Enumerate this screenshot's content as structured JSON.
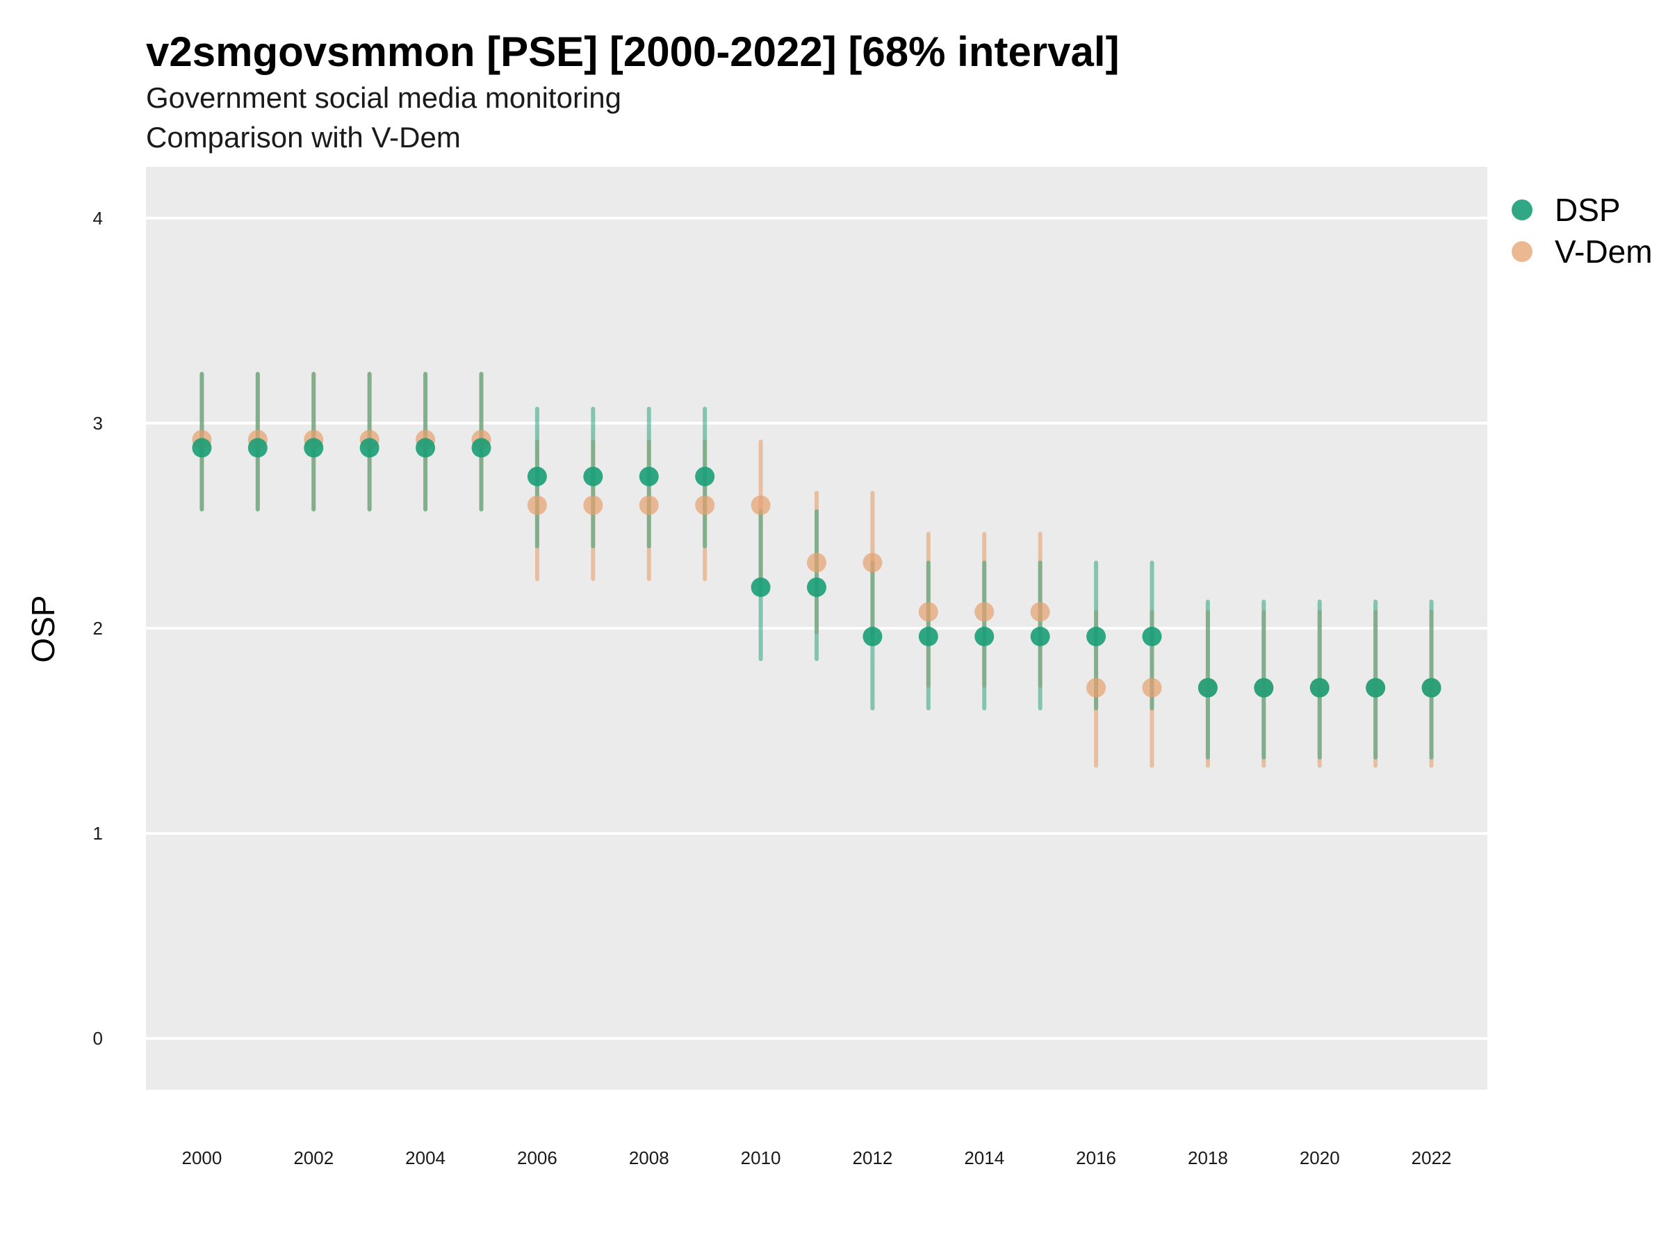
{
  "chart_data": {
    "type": "scatter",
    "title": "v2smgovsmmon [PSE] [2000-2022] [68% interval]",
    "subtitle_line1": "Government social media monitoring",
    "subtitle_line2": "Comparison with V-Dem",
    "xlabel": "",
    "ylabel": "OSP",
    "xlim": [
      1999.0,
      2023.0
    ],
    "ylim": [
      -0.25,
      4.25
    ],
    "x_ticks": [
      2000,
      2002,
      2004,
      2006,
      2008,
      2010,
      2012,
      2014,
      2016,
      2018,
      2020,
      2022
    ],
    "x_tick_labels": [
      "2000",
      "2002",
      "2004",
      "2006",
      "2008",
      "2010",
      "2012",
      "2014",
      "2016",
      "2018",
      "2020",
      "2022"
    ],
    "y_ticks": [
      0,
      1,
      2,
      3,
      4
    ],
    "y_tick_labels": [
      "0",
      "1",
      "2",
      "3",
      "4"
    ],
    "grid": true,
    "legend_position": "top-right",
    "x": [
      2000,
      2001,
      2002,
      2003,
      2004,
      2005,
      2006,
      2007,
      2008,
      2009,
      2010,
      2011,
      2012,
      2013,
      2014,
      2015,
      2016,
      2017,
      2018,
      2019,
      2020,
      2021,
      2022
    ],
    "series": [
      {
        "name": "V-Dem",
        "color": "#E6A06E",
        "values": [
          2.92,
          2.92,
          2.92,
          2.92,
          2.92,
          2.92,
          2.6,
          2.6,
          2.6,
          2.6,
          2.6,
          2.32,
          2.32,
          2.08,
          2.08,
          2.08,
          1.71,
          1.71,
          1.71,
          1.71,
          1.71,
          1.71,
          1.71
        ],
        "lower": [
          2.58,
          2.58,
          2.58,
          2.58,
          2.58,
          2.58,
          2.24,
          2.24,
          2.24,
          2.24,
          2.24,
          1.98,
          1.98,
          1.72,
          1.72,
          1.72,
          1.33,
          1.33,
          1.33,
          1.33,
          1.33,
          1.33,
          1.33
        ],
        "upper": [
          3.24,
          3.24,
          3.24,
          3.24,
          3.24,
          3.24,
          2.91,
          2.91,
          2.91,
          2.91,
          2.91,
          2.66,
          2.66,
          2.46,
          2.46,
          2.46,
          2.08,
          2.08,
          2.08,
          2.08,
          2.08,
          2.08,
          2.08
        ]
      },
      {
        "name": "DSP",
        "color": "#1B9E77",
        "values": [
          2.88,
          2.88,
          2.88,
          2.88,
          2.88,
          2.88,
          2.74,
          2.74,
          2.74,
          2.74,
          2.2,
          2.2,
          1.96,
          1.96,
          1.96,
          1.96,
          1.96,
          1.96,
          1.71,
          1.71,
          1.71,
          1.71,
          1.71
        ],
        "lower": [
          2.58,
          2.58,
          2.58,
          2.58,
          2.58,
          2.58,
          2.4,
          2.4,
          2.4,
          2.4,
          1.85,
          1.85,
          1.61,
          1.61,
          1.61,
          1.61,
          1.61,
          1.61,
          1.37,
          1.37,
          1.37,
          1.37,
          1.37
        ],
        "upper": [
          3.24,
          3.24,
          3.24,
          3.24,
          3.24,
          3.24,
          3.07,
          3.07,
          3.07,
          3.07,
          2.57,
          2.57,
          2.32,
          2.32,
          2.32,
          2.32,
          2.32,
          2.32,
          2.13,
          2.13,
          2.13,
          2.13,
          2.13
        ]
      }
    ],
    "legend": [
      "DSP",
      "V-Dem"
    ],
    "colors": {
      "panel": "#EBEBEB",
      "grid": "#FFFFFF",
      "DSP": "#1B9E77",
      "V-Dem": "#E6A06E"
    }
  }
}
